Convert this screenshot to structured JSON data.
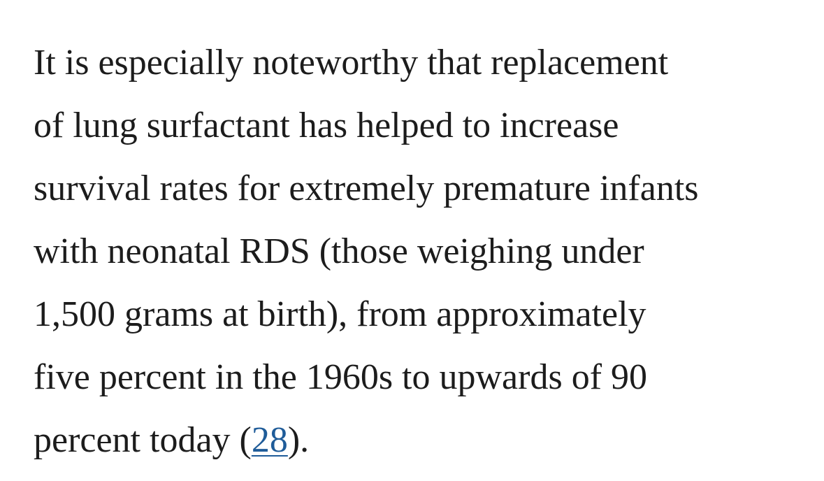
{
  "paragraph": {
    "lines": [
      "It is especially noteworthy that replacement",
      "of lung surfactant has helped to increase",
      "survival rates for extremely premature infants",
      "with neonatal RDS (those weighing under",
      "1,500 grams at birth), from approximately",
      "five percent in the 1960s to upwards of 90"
    ],
    "last_line": {
      "before": "percent today (",
      "link": "28",
      "after": ")."
    }
  }
}
